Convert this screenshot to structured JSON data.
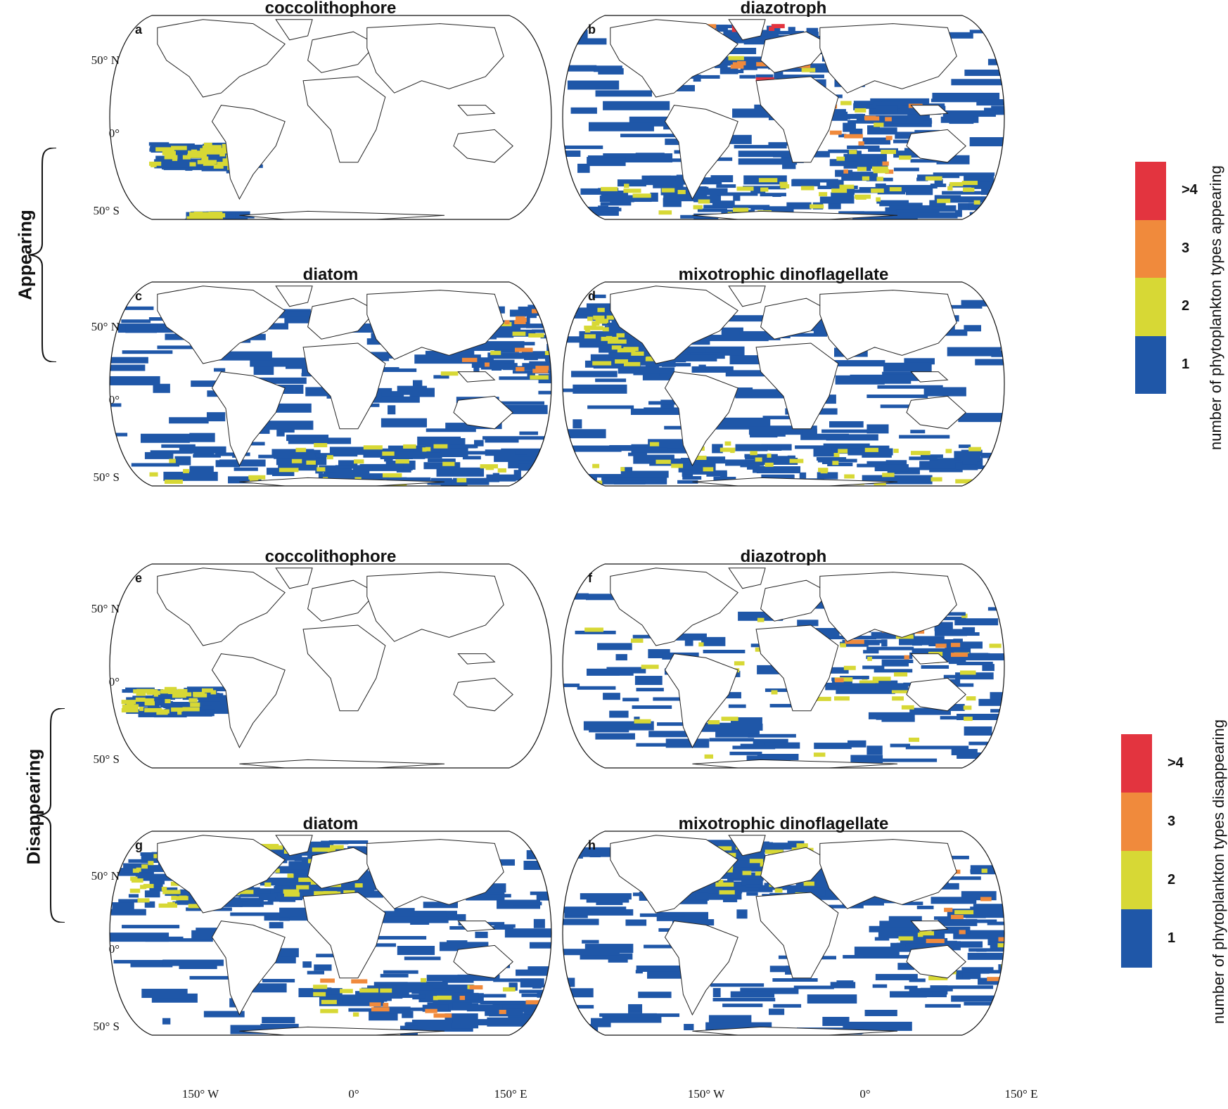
{
  "colors": {
    "c1": "#1f57a8",
    "c2": "#d7d835",
    "c3": "#f08a3c",
    "c4": "#e3343f",
    "coast": "#222222"
  },
  "panels": [
    {
      "id": "a",
      "letter": "a",
      "title": "coccolithophore",
      "group": "appearing",
      "lat_labels": [
        "50° N",
        "0°",
        "50° S"
      ],
      "density": "low",
      "hotspots": [
        {
          "region": "south-central-pacific",
          "level": 1
        },
        {
          "region": "southern-edge",
          "level": 1
        }
      ]
    },
    {
      "id": "b",
      "letter": "b",
      "title": "diazotroph",
      "group": "appearing",
      "lat_labels": [],
      "density": "high",
      "hotspots": [
        {
          "region": "north-atlantic",
          "level": 4
        },
        {
          "region": "indian-ocean",
          "level": 3
        },
        {
          "region": "southern-ocean",
          "level": 2
        }
      ]
    },
    {
      "id": "c",
      "letter": "c",
      "title": "diatom",
      "group": "appearing",
      "lat_labels": [
        "50° N",
        "0°",
        "50° S"
      ],
      "density": "high",
      "hotspots": [
        {
          "region": "southern-ocean",
          "level": 1
        },
        {
          "region": "northwest-pacific",
          "level": 3
        }
      ]
    },
    {
      "id": "d",
      "letter": "d",
      "title": "mixotrophic dinoflagellate",
      "group": "appearing",
      "lat_labels": [],
      "density": "high",
      "hotspots": [
        {
          "region": "southern-ocean",
          "level": 2
        },
        {
          "region": "northeast-pacific",
          "level": 1
        }
      ]
    },
    {
      "id": "e",
      "letter": "e",
      "title": "coccolithophore",
      "group": "disappearing",
      "lat_labels": [
        "50° N",
        "0°",
        "50° S"
      ],
      "density": "low",
      "hotspots": [
        {
          "region": "south-pacific",
          "level": 1
        }
      ]
    },
    {
      "id": "f",
      "letter": "f",
      "title": "diazotroph",
      "group": "disappearing",
      "lat_labels": [],
      "density": "medium",
      "hotspots": [
        {
          "region": "tropical-bands",
          "level": 1
        },
        {
          "region": "bay-of-bengal",
          "level": 3
        }
      ]
    },
    {
      "id": "g",
      "letter": "g",
      "title": "diatom",
      "group": "disappearing",
      "lat_labels": [
        "50° N",
        "0°",
        "50° S"
      ],
      "density": "high",
      "hotspots": [
        {
          "region": "north-atlantic",
          "level": 2
        },
        {
          "region": "north-pacific",
          "level": 2
        },
        {
          "region": "southern-indian",
          "level": 3
        }
      ]
    },
    {
      "id": "h",
      "letter": "h",
      "title": "mixotrophic dinoflagellate",
      "group": "disappearing",
      "lat_labels": [],
      "density": "high",
      "hotspots": [
        {
          "region": "north-atlantic",
          "level": 2
        },
        {
          "region": "western-pacific",
          "level": 3
        }
      ]
    }
  ],
  "group_labels": {
    "appearing": "Appearing",
    "disappearing": "Disappearing"
  },
  "colorbars": [
    {
      "id": "appearing",
      "title": "number of phytoplankton types appearing",
      "levels": [
        ">4",
        "3",
        "2",
        "1"
      ]
    },
    {
      "id": "disappearing",
      "title": "number of phytoplankton types disappearing",
      "levels": [
        ">4",
        "3",
        "2",
        "1"
      ]
    }
  ],
  "lon_labels": [
    "150° W",
    "0°",
    "150° E"
  ]
}
